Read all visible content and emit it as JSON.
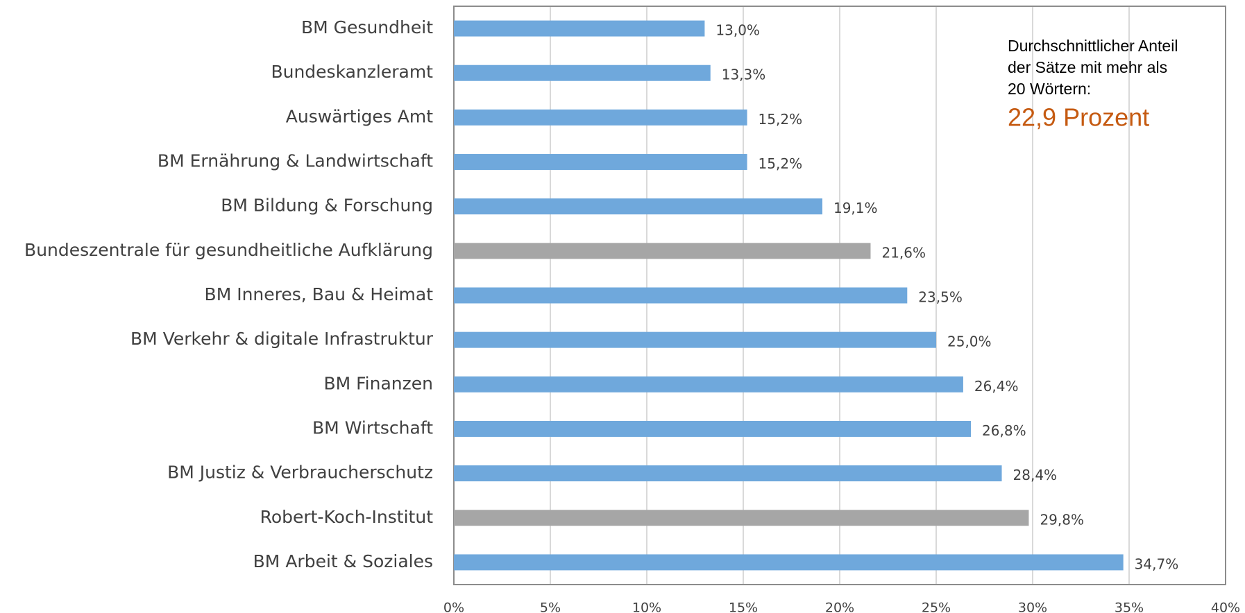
{
  "chart_data": {
    "type": "bar",
    "orientation": "horizontal",
    "categories": [
      "BM Gesundheit",
      "Bundeskanzleramt",
      "Auswärtiges Amt",
      "BM Ernährung & Landwirtschaft",
      "BM Bildung & Forschung",
      "Bundeszentrale für gesundheitliche Aufklärung",
      "BM Inneres, Bau & Heimat",
      "BM Verkehr & digitale Infrastruktur",
      "BM Finanzen",
      "BM Wirtschaft",
      "BM Justiz & Verbraucherschutz",
      "Robert-Koch-Institut",
      "BM Arbeit & Soziales"
    ],
    "values": [
      13.0,
      13.3,
      15.2,
      15.2,
      19.1,
      21.6,
      23.5,
      25.0,
      26.4,
      26.8,
      28.4,
      29.8,
      34.7
    ],
    "value_labels": [
      "13,0%",
      "13,3%",
      "15,2%",
      "15,2%",
      "19,1%",
      "21,6%",
      "23,5%",
      "25,0%",
      "26,4%",
      "26,8%",
      "28,4%",
      "29,8%",
      "34,7%"
    ],
    "colors": [
      "#6fa8dc",
      "#6fa8dc",
      "#6fa8dc",
      "#6fa8dc",
      "#6fa8dc",
      "#a6a6a6",
      "#6fa8dc",
      "#6fa8dc",
      "#6fa8dc",
      "#6fa8dc",
      "#6fa8dc",
      "#a6a6a6",
      "#6fa8dc"
    ],
    "xlim": [
      0,
      40
    ],
    "xticks": [
      {
        "value": 0,
        "label": "0%"
      },
      {
        "value": 5,
        "label": "5%"
      },
      {
        "value": 10,
        "label": "10%"
      },
      {
        "value": 15,
        "label": "15%"
      },
      {
        "value": 20,
        "label": "20%"
      },
      {
        "value": 25,
        "label": "25%"
      },
      {
        "value": 30,
        "label": "30%"
      },
      {
        "value": 35,
        "label": "35%"
      },
      {
        "value": 40,
        "label": "40%"
      }
    ],
    "grid": true,
    "annotation": {
      "lines": [
        "Durchschnittlicher Anteil",
        "der Sätze mit mehr als",
        "20 Wörtern:"
      ],
      "highlight": "22,9 Prozent"
    }
  }
}
